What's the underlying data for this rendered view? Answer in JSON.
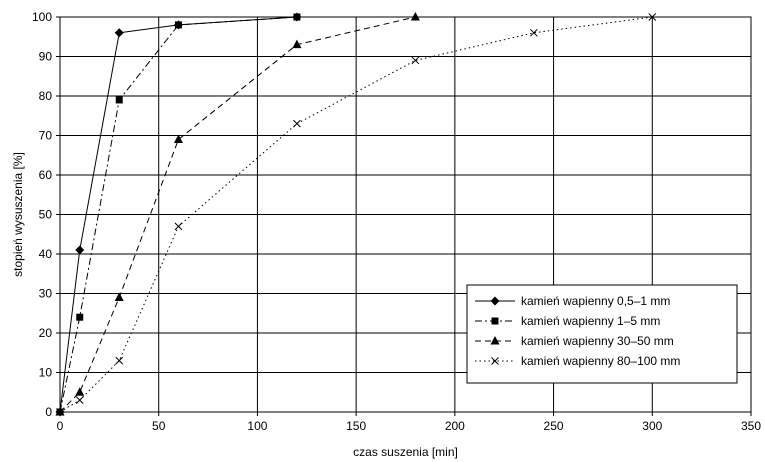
{
  "chart_data": {
    "type": "line",
    "title": "",
    "xlabel": "czas suszenia [min]",
    "ylabel": "stopień wysuszenia [%]",
    "xlim": [
      0,
      350
    ],
    "ylim": [
      0,
      100
    ],
    "xticks": [
      "0",
      "50",
      "100",
      "150",
      "200",
      "250",
      "300",
      "350"
    ],
    "yticks": [
      "0",
      "10",
      "20",
      "30",
      "40",
      "50",
      "60",
      "70",
      "80",
      "90",
      "100"
    ],
    "grid": true,
    "legend_position": "bottom-right",
    "series": [
      {
        "name": "kamień wapienny 0,5–1 mm",
        "marker": "diamond",
        "line_style": "solid",
        "points": [
          [
            0,
            0
          ],
          [
            10,
            41
          ],
          [
            30,
            96
          ],
          [
            60,
            98
          ],
          [
            120,
            100
          ]
        ]
      },
      {
        "name": "kamień wapienny 1–5 mm",
        "marker": "square",
        "line_style": "dash-dot",
        "points": [
          [
            0,
            0
          ],
          [
            10,
            24
          ],
          [
            30,
            79
          ],
          [
            60,
            98
          ],
          [
            120,
            100
          ]
        ]
      },
      {
        "name": "kamień wapienny 30–50 mm",
        "marker": "triangle",
        "line_style": "dashed",
        "points": [
          [
            0,
            0
          ],
          [
            10,
            5
          ],
          [
            30,
            29
          ],
          [
            60,
            69
          ],
          [
            120,
            93
          ],
          [
            180,
            100
          ]
        ]
      },
      {
        "name": "kamień wapienny 80–100 mm",
        "marker": "x",
        "line_style": "dotted",
        "points": [
          [
            0,
            0
          ],
          [
            10,
            3
          ],
          [
            30,
            13
          ],
          [
            60,
            47
          ],
          [
            120,
            73
          ],
          [
            180,
            89
          ],
          [
            240,
            96
          ],
          [
            300,
            100
          ]
        ]
      }
    ]
  }
}
